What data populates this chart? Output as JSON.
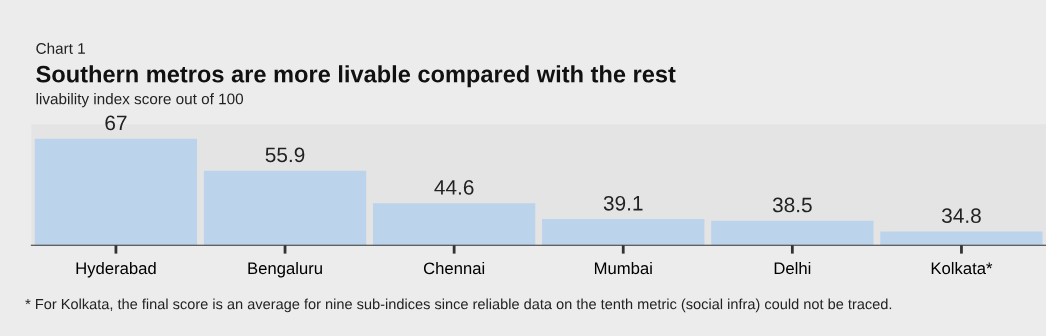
{
  "chart_data": {
    "type": "bar",
    "title": "Southern metros are more livable compared with the rest",
    "subtitle": "livability index score out of 100",
    "categories": [
      "Hyderabad",
      "Bengaluru",
      "Chennai",
      "Mumbai",
      "Delhi",
      "Kolkata*"
    ],
    "values": [
      67,
      55.9,
      44.6,
      39.1,
      38.5,
      34.8
    ],
    "color": "#bcd3ec",
    "ylim": [
      30,
      72
    ],
    "data_labels": true,
    "grid": false,
    "legend": false,
    "annotations": [
      "Chart 1",
      "* For Kolkata, the final score is an average for nine sub-indices since reliable data on the tenth metric (social infra) could not be traced."
    ]
  }
}
